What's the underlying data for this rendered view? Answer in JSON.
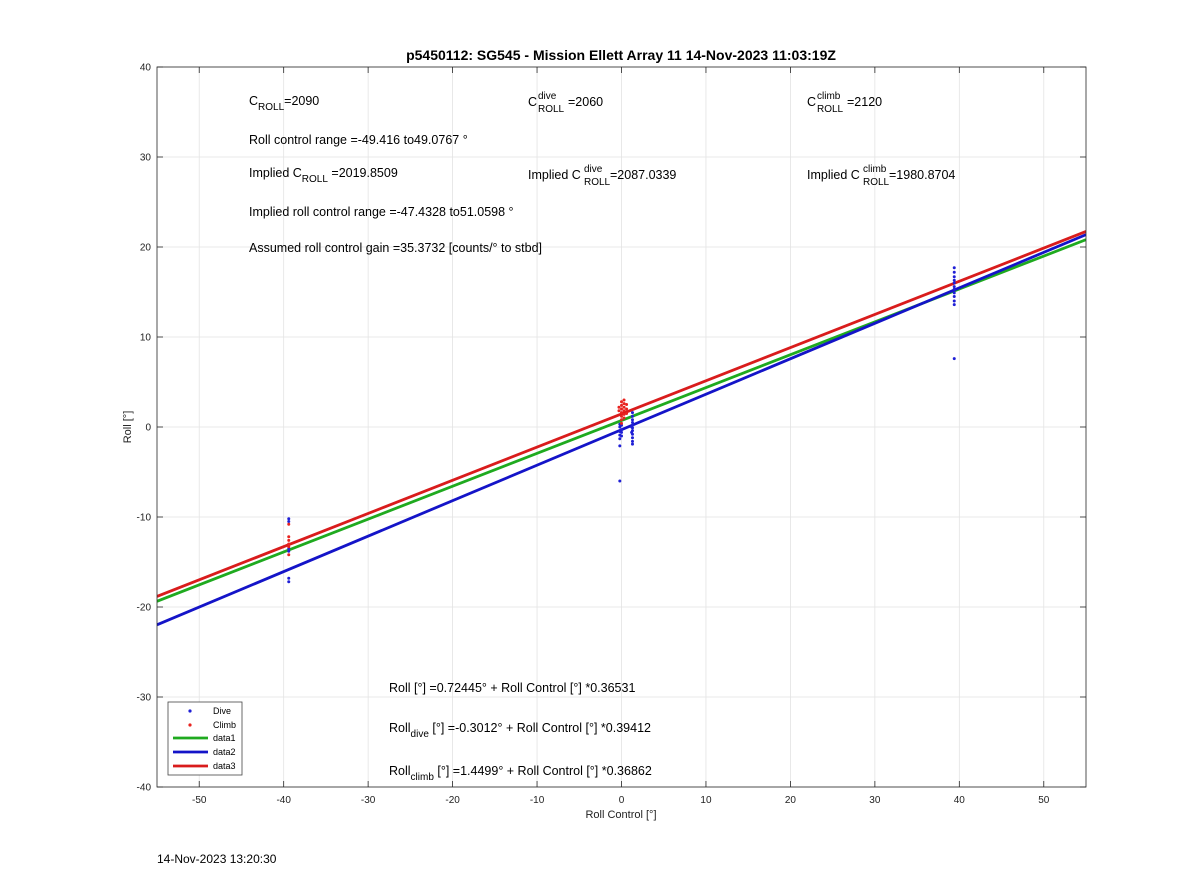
{
  "chart_data": {
    "type": "scatter",
    "title": "p5450112: SG545 - Mission Ellett Array 11 14-Nov-2023 11:03:19Z",
    "xlabel": "Roll Control [°]",
    "ylabel": "Roll [°]",
    "xlim": [
      -55,
      55
    ],
    "ylim": [
      -40,
      40
    ],
    "xticks": [
      -50,
      -40,
      -30,
      -20,
      -10,
      0,
      10,
      20,
      30,
      40,
      50
    ],
    "yticks": [
      -40,
      -30,
      -20,
      -10,
      0,
      10,
      20,
      30,
      40
    ],
    "grid": true,
    "legend_placement": "bottom-left",
    "colors": {
      "dive": "#1f1fd6",
      "climb": "#e8231f",
      "data1": "#1faa1f",
      "data2": "#1414c8",
      "data3": "#d91c1c"
    },
    "scatter_series": [
      {
        "name": "Dive",
        "points": [
          [
            -39.4,
            -10.2
          ],
          [
            -39.4,
            -10.5
          ],
          [
            -39.4,
            -16.8
          ],
          [
            -39.4,
            -17.2
          ],
          [
            -39.4,
            -13.5
          ],
          [
            -39.4,
            -13.8
          ],
          [
            -0.2,
            -6.0
          ],
          [
            -0.2,
            -2.1
          ],
          [
            -0.2,
            -1.3
          ],
          [
            -0.2,
            -0.9
          ],
          [
            -0.2,
            -0.5
          ],
          [
            -0.2,
            0.0
          ],
          [
            -0.2,
            0.3
          ],
          [
            0.0,
            -1.0
          ],
          [
            0.0,
            -0.6
          ],
          [
            0.0,
            -0.3
          ],
          [
            0.0,
            0.2
          ],
          [
            1.3,
            -1.9
          ],
          [
            1.3,
            -1.6
          ],
          [
            1.3,
            -1.2
          ],
          [
            1.3,
            -0.8
          ],
          [
            1.3,
            -0.4
          ],
          [
            1.3,
            -0.1
          ],
          [
            1.3,
            0.2
          ],
          [
            1.3,
            0.5
          ],
          [
            1.3,
            0.8
          ],
          [
            1.3,
            1.2
          ],
          [
            1.3,
            1.6
          ],
          [
            1.2,
            0.0
          ],
          [
            1.2,
            -0.6
          ],
          [
            39.4,
            7.6
          ],
          [
            39.4,
            13.6
          ],
          [
            39.4,
            14.0
          ],
          [
            39.4,
            14.5
          ],
          [
            39.4,
            14.9
          ],
          [
            39.4,
            15.3
          ],
          [
            39.4,
            15.6
          ],
          [
            39.4,
            16.0
          ],
          [
            39.4,
            16.3
          ],
          [
            39.4,
            16.7
          ],
          [
            39.4,
            17.2
          ],
          [
            39.4,
            17.7
          ]
        ]
      },
      {
        "name": "Climb",
        "points": [
          [
            -39.4,
            -10.8
          ],
          [
            -39.4,
            -12.2
          ],
          [
            -39.4,
            -12.6
          ],
          [
            -39.4,
            -13.0
          ],
          [
            -39.4,
            -13.3
          ],
          [
            -39.4,
            -14.2
          ],
          [
            0.0,
            0.4
          ],
          [
            0.0,
            0.8
          ],
          [
            0.0,
            1.2
          ],
          [
            0.0,
            1.6
          ],
          [
            0.0,
            2.0
          ],
          [
            0.0,
            2.4
          ],
          [
            0.0,
            2.8
          ],
          [
            0.3,
            1.0
          ],
          [
            0.3,
            1.4
          ],
          [
            0.3,
            1.8
          ],
          [
            0.3,
            2.2
          ],
          [
            0.3,
            2.6
          ],
          [
            0.3,
            3.0
          ],
          [
            0.6,
            1.5
          ],
          [
            0.6,
            2.0
          ],
          [
            0.6,
            2.5
          ],
          [
            -0.3,
            1.8
          ],
          [
            -0.3,
            2.2
          ]
        ]
      }
    ],
    "line_series": [
      {
        "name": "data1",
        "intercept": 0.72445,
        "slope": 0.36531,
        "x": [
          -55,
          55
        ]
      },
      {
        "name": "data2",
        "intercept": -0.3012,
        "slope": 0.39412,
        "x": [
          -55,
          55
        ]
      },
      {
        "name": "data3",
        "intercept": 1.4499,
        "slope": 0.36862,
        "x": [
          -55,
          55
        ]
      }
    ]
  },
  "annotations": {
    "c_roll": {
      "base": "C",
      "sub": "ROLL",
      "value": "=2090"
    },
    "c_roll_dive": {
      "base": "C",
      "sup": "dive",
      "sub": "ROLL",
      "value": "=2060"
    },
    "c_roll_climb": {
      "base": "C",
      "sup": "climb",
      "sub": "ROLL",
      "value": "=2120"
    },
    "roll_control_range": "Roll control range =-49.416 to49.0767 °",
    "implied_c_roll": {
      "prefix": "Implied C",
      "sub": "ROLL",
      "value": " =2019.8509"
    },
    "implied_c_roll_dive": {
      "prefix": "Implied C",
      "sup": "dive",
      "sub": "ROLL",
      "value": " =2087.0339"
    },
    "implied_c_roll_climb": {
      "prefix": "Implied C",
      "sup": "climb",
      "sub": "ROLL",
      "value": " =1980.8704"
    },
    "implied_range": "Implied roll control range =-47.4328 to51.0598 °",
    "gain": "Assumed roll control gain =35.3732 [counts/° to stbd]",
    "fit_all": "Roll [°] =0.72445° + Roll Control [°] *0.36531",
    "fit_dive": {
      "base": "Roll",
      "sub": "dive",
      "rest": " [°] =-0.3012° + Roll Control [°] *0.39412"
    },
    "fit_climb": {
      "base": "Roll",
      "sub": "climb",
      "rest": " [°] =1.4499° + Roll Control [°] *0.36862"
    }
  },
  "legend": [
    {
      "label": "Dive",
      "kind": "point",
      "color": "#1f1fd6"
    },
    {
      "label": "Climb",
      "kind": "point",
      "color": "#e8231f"
    },
    {
      "label": "data1",
      "kind": "line",
      "color": "#1faa1f"
    },
    {
      "label": "data2",
      "kind": "line",
      "color": "#1414c8"
    },
    {
      "label": "data3",
      "kind": "line",
      "color": "#d91c1c"
    }
  ],
  "timestamp": "14-Nov-2023 13:20:30"
}
